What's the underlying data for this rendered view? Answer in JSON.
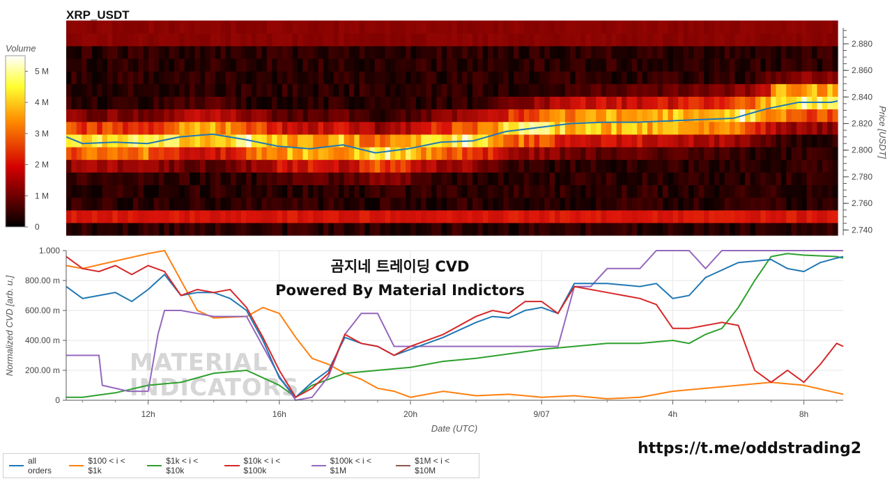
{
  "title": "XRP_USDT",
  "overlay_text": [
    "곰지네 트레이딩 CVD",
    "Powered By Material Indictors"
  ],
  "watermark_lines": [
    "MATERIAL",
    "INDICATORS"
  ],
  "link_text": "https://t.me/oddstrading2",
  "colors": {
    "all_orders": "#1f77b4",
    "b100_1k": "#ff7f0e",
    "b1k_10k": "#2ca02c",
    "b10k_100k": "#d62728",
    "b100k_1M": "#9467bd",
    "b1M_10M": "#8c564b"
  },
  "chart_data": [
    {
      "type": "heatmap",
      "title": "XRP_USDT",
      "colorbar": {
        "label": "Volume",
        "ticks": [
          "0",
          "1 M",
          "2 M",
          "3 M",
          "4 M",
          "5 M"
        ],
        "range": [
          0,
          5500000
        ],
        "colors": [
          "#000000",
          "#ff0000",
          "#ffff00",
          "#ffffff"
        ]
      },
      "yaxis": {
        "label": "Price [USDT]",
        "ticks": [
          "2.740",
          "2.760",
          "2.780",
          "2.800",
          "2.820",
          "2.840",
          "2.860",
          "2.880"
        ],
        "range": [
          2.736,
          2.892
        ]
      },
      "x_hours_range": [
        9.5,
        33.2
      ],
      "price_line": {
        "x_hours": [
          9.5,
          10,
          11,
          12,
          13,
          14,
          15,
          16,
          17,
          18,
          19,
          20,
          21,
          22,
          23,
          24,
          25,
          26,
          27,
          28,
          29,
          30,
          31,
          32,
          33,
          33.2
        ],
        "price": [
          2.81,
          2.805,
          2.806,
          2.805,
          2.81,
          2.812,
          2.808,
          2.803,
          2.801,
          2.804,
          2.798,
          2.801,
          2.806,
          2.807,
          2.814,
          2.817,
          2.82,
          2.821,
          2.821,
          2.822,
          2.823,
          2.824,
          2.831,
          2.836,
          2.836,
          2.837
        ]
      }
    },
    {
      "type": "line",
      "xlabel": "Date (UTC)",
      "ylabel": "Normalized CVD [arb. u.]",
      "x_ticks": [
        "12h",
        "16h",
        "20h",
        "9/07",
        "4h",
        "8h"
      ],
      "x_tick_hours": [
        12,
        16,
        20,
        24,
        28,
        32
      ],
      "x_range_hours": [
        9.5,
        33.2
      ],
      "y_ticks": [
        "0",
        "200.00 m",
        "400.00 m",
        "600.00 m",
        "800.00 m",
        "1.000"
      ],
      "ylim": [
        0,
        1
      ],
      "series": [
        {
          "name": "all orders",
          "x": [
            9.5,
            10,
            10.5,
            11,
            11.5,
            12,
            12.5,
            13,
            13.5,
            14,
            14.5,
            15,
            15.5,
            16,
            16.5,
            17,
            17.5,
            18,
            18.5,
            19,
            19.5,
            20,
            21,
            22,
            22.5,
            23,
            23.5,
            24,
            24.5,
            25,
            26,
            27,
            27.5,
            28,
            28.5,
            29,
            30,
            31,
            31.5,
            32,
            32.5,
            33,
            33.2
          ],
          "y": [
            0.76,
            0.68,
            0.7,
            0.72,
            0.66,
            0.74,
            0.84,
            0.7,
            0.72,
            0.72,
            0.68,
            0.6,
            0.4,
            0.15,
            0.02,
            0.12,
            0.2,
            0.42,
            0.38,
            0.36,
            0.3,
            0.34,
            0.42,
            0.52,
            0.56,
            0.55,
            0.6,
            0.62,
            0.58,
            0.78,
            0.78,
            0.76,
            0.78,
            0.68,
            0.7,
            0.82,
            0.92,
            0.94,
            0.88,
            0.86,
            0.92,
            0.95,
            0.96
          ]
        },
        {
          "name": "$100 < i < $1k",
          "x": [
            9.5,
            10,
            11,
            12,
            12.5,
            13,
            13.5,
            14,
            15,
            15.5,
            16,
            16.5,
            17,
            17.5,
            18,
            18.5,
            19,
            19.5,
            20,
            21,
            22,
            23,
            24,
            25,
            26,
            27,
            28,
            29,
            30,
            31,
            32,
            33,
            33.2
          ],
          "y": [
            0.9,
            0.88,
            0.93,
            0.98,
            1.0,
            0.8,
            0.6,
            0.55,
            0.56,
            0.62,
            0.58,
            0.42,
            0.28,
            0.24,
            0.18,
            0.14,
            0.08,
            0.06,
            0.02,
            0.06,
            0.03,
            0.04,
            0.02,
            0.03,
            0.01,
            0.02,
            0.06,
            0.08,
            0.1,
            0.12,
            0.1,
            0.05,
            0.04
          ]
        },
        {
          "name": "$1k < i < $10k",
          "x": [
            9.5,
            10,
            11,
            12,
            13,
            14,
            15,
            16,
            16.5,
            17,
            17.5,
            18,
            19,
            20,
            21,
            22,
            23,
            24,
            25,
            26,
            27,
            28,
            28.5,
            29,
            29.5,
            30,
            30.5,
            31,
            31.5,
            32,
            33,
            33.2
          ],
          "y": [
            0.02,
            0.02,
            0.05,
            0.1,
            0.12,
            0.18,
            0.2,
            0.1,
            0.02,
            0.1,
            0.14,
            0.18,
            0.2,
            0.22,
            0.26,
            0.28,
            0.31,
            0.34,
            0.36,
            0.38,
            0.38,
            0.4,
            0.38,
            0.44,
            0.48,
            0.62,
            0.8,
            0.96,
            0.98,
            0.97,
            0.96,
            0.95
          ]
        },
        {
          "name": "$10k < i < $100k",
          "x": [
            9.5,
            10,
            10.5,
            11,
            11.5,
            12,
            12.5,
            13,
            13.5,
            14,
            14.5,
            15,
            15.5,
            16,
            16.5,
            17,
            17.5,
            18,
            18.5,
            19,
            19.5,
            20,
            21,
            22,
            22.5,
            23,
            23.5,
            24,
            24.5,
            25,
            26,
            27,
            27.5,
            28,
            28.5,
            29,
            29.5,
            30,
            30.5,
            31,
            31.5,
            32,
            32.5,
            33,
            33.2
          ],
          "y": [
            0.96,
            0.88,
            0.86,
            0.9,
            0.84,
            0.9,
            0.86,
            0.7,
            0.74,
            0.72,
            0.74,
            0.62,
            0.42,
            0.2,
            0.02,
            0.08,
            0.18,
            0.44,
            0.38,
            0.36,
            0.3,
            0.36,
            0.44,
            0.56,
            0.6,
            0.58,
            0.66,
            0.66,
            0.58,
            0.76,
            0.72,
            0.68,
            0.64,
            0.48,
            0.48,
            0.5,
            0.52,
            0.5,
            0.2,
            0.12,
            0.2,
            0.12,
            0.24,
            0.38,
            0.36
          ]
        },
        {
          "name": "$100k < i < $1M",
          "x": [
            9.5,
            10.5,
            10.6,
            11.4,
            11.5,
            12,
            12.3,
            12.5,
            13,
            14,
            15,
            15.5,
            16,
            16.5,
            17,
            17.5,
            18,
            18.5,
            19,
            19.5,
            20,
            21,
            22,
            23,
            24,
            24.5,
            25,
            25.5,
            26,
            26.5,
            27,
            27.5,
            28,
            28.5,
            29,
            29.5,
            30,
            31,
            32,
            33,
            33.2
          ],
          "y": [
            0.3,
            0.3,
            0.1,
            0.06,
            0.06,
            0.06,
            0.44,
            0.6,
            0.6,
            0.56,
            0.56,
            0.36,
            0.16,
            0.0,
            0.02,
            0.16,
            0.44,
            0.58,
            0.58,
            0.36,
            0.36,
            0.36,
            0.36,
            0.36,
            0.36,
            0.36,
            0.76,
            0.76,
            0.88,
            0.88,
            0.88,
            1.0,
            1.0,
            1.0,
            0.88,
            1.0,
            1.0,
            1.0,
            1.0,
            1.0,
            1.0
          ]
        },
        {
          "name": "$1M < i < $10M",
          "x": [],
          "y": []
        }
      ],
      "legend_position": "bottom"
    }
  ]
}
